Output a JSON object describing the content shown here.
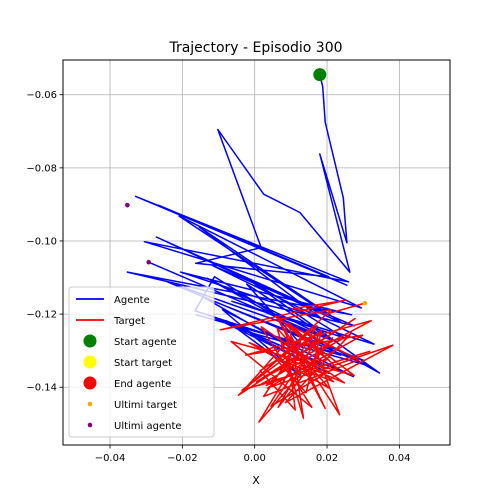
{
  "chart_data": {
    "type": "line",
    "title": "Trajectory - Episodio 300",
    "xlabel": "X",
    "ylabel": "",
    "xlim": [
      -0.053,
      0.054
    ],
    "ylim": [
      -0.1558,
      -0.0505
    ],
    "xticks": [
      -0.04,
      -0.02,
      0.0,
      0.02,
      0.04
    ],
    "xtick_labels": [
      "−0.04",
      "−0.02",
      "0.00",
      "0.02",
      "0.04"
    ],
    "yticks": [
      -0.14,
      -0.12,
      -0.1,
      -0.08,
      -0.06
    ],
    "ytick_labels": [
      "−0.14",
      "−0.12",
      "−0.10",
      "−0.08",
      "−0.06"
    ],
    "grid": true,
    "legend_position": "lower-left",
    "series": [
      {
        "name": "Agente",
        "kind": "line",
        "color": "#0000ff",
        "x": [
          0.018,
          0.0188,
          0.0195,
          0.0245,
          0.0255,
          0.018,
          0.0263,
          0.0125,
          0.0025,
          -0.0102,
          0.0018,
          -0.0163,
          0.0205,
          -0.0266,
          0.0255,
          -0.0329,
          0.026,
          -0.0305,
          0.0295,
          -0.0209,
          0.0195,
          -0.0272,
          0.0242,
          -0.0153,
          0.0185,
          -0.0205,
          0.0268,
          -0.0352,
          0.0275,
          -0.0115,
          0.033,
          -0.0063,
          0.0248,
          -0.0019,
          0.0345,
          -0.0131,
          0.0212,
          -0.0022,
          0.0132,
          -0.0165,
          -0.0111,
          0.0238,
          -0.0162,
          0.0302,
          -0.0139,
          0.0182,
          -0.0079,
          0.0205,
          -0.0128,
          0.0273,
          -0.0089,
          0.0126,
          -0.0047,
          0.0318,
          -0.0243,
          0.0225,
          -0.0052,
          0.0188,
          -0.0293
        ],
        "y": [
          -0.0545,
          -0.0578,
          -0.0675,
          -0.0882,
          -0.1005,
          -0.0762,
          -0.1085,
          -0.0922,
          -0.0872,
          -0.0695,
          -0.1018,
          -0.1061,
          -0.1098,
          -0.0902,
          -0.1121,
          -0.0878,
          -0.1112,
          -0.1002,
          -0.1183,
          -0.0932,
          -0.1197,
          -0.0989,
          -0.1225,
          -0.0962,
          -0.1212,
          -0.1085,
          -0.1202,
          -0.1085,
          -0.1232,
          -0.1068,
          -0.1282,
          -0.1165,
          -0.1265,
          -0.1104,
          -0.1361,
          -0.1102,
          -0.1271,
          -0.1118,
          -0.1287,
          -0.1191,
          -0.1098,
          -0.1312,
          -0.1202,
          -0.1327,
          -0.1155,
          -0.1338,
          -0.1218,
          -0.1362,
          -0.1202,
          -0.1371,
          -0.1188,
          -0.1368,
          -0.1241,
          -0.1342,
          -0.1111,
          -0.1275,
          -0.1178,
          -0.1262,
          -0.1058
        ]
      },
      {
        "name": "Target",
        "kind": "line",
        "color": "#ff0000",
        "x": [
          0.0305,
          0.0198,
          0.0105,
          0.0252,
          -0.0095,
          0.0212,
          -0.0045,
          0.0278,
          0.0005,
          0.0322,
          -0.0025,
          0.0298,
          0.0035,
          0.0382,
          0.0085,
          0.0265,
          0.0012,
          0.0318,
          -0.0035,
          0.0182,
          0.0065,
          0.0215,
          0.0012,
          0.0172,
          -0.0025,
          0.0102,
          0.0195,
          0.0065,
          0.0288,
          0.0025,
          0.0148,
          0.0235,
          0.0058,
          0.0275,
          -0.0065,
          0.0158,
          0.0018,
          0.0248,
          -0.0015,
          0.0205,
          0.0062,
          0.0135,
          0.0095,
          0.0225,
          0.0045,
          0.0175,
          0.0032,
          0.0198,
          0.0085,
          0.0112,
          0.0015,
          0.0185,
          0.0142,
          0.0055,
          0.0218,
          0.0105
        ],
        "y": [
          -0.117,
          -0.12,
          -0.1185,
          -0.1162,
          -0.1243,
          -0.1188,
          -0.1422,
          -0.1212,
          -0.1385,
          -0.1218,
          -0.1312,
          -0.1258,
          -0.1402,
          -0.1285,
          -0.1442,
          -0.1255,
          -0.1395,
          -0.1302,
          -0.1408,
          -0.1248,
          -0.1455,
          -0.1265,
          -0.1495,
          -0.1232,
          -0.1402,
          -0.1262,
          -0.1458,
          -0.1215,
          -0.1325,
          -0.1425,
          -0.1242,
          -0.1475,
          -0.1205,
          -0.1368,
          -0.1275,
          -0.1455,
          -0.1235,
          -0.1388,
          -0.1278,
          -0.1402,
          -0.1238,
          -0.1485,
          -0.1225,
          -0.1345,
          -0.1452,
          -0.1268,
          -0.1395,
          -0.1322,
          -0.1228,
          -0.1462,
          -0.1355,
          -0.1245,
          -0.1415,
          -0.1318,
          -0.1385,
          -0.1295
        ]
      },
      {
        "name": "Start agente",
        "kind": "marker",
        "color": "#008000",
        "points": [
          [
            0.018,
            -0.0545
          ]
        ]
      },
      {
        "name": "Start target",
        "kind": "marker",
        "color": "#ffff00",
        "points": []
      },
      {
        "name": "End agente",
        "kind": "marker",
        "color": "#ff0000",
        "points": []
      },
      {
        "name": "Ultimi target",
        "kind": "dots",
        "color": "#ffa500",
        "points": [
          [
            0.0305,
            -0.117
          ]
        ]
      },
      {
        "name": "Ultimi agente",
        "kind": "dots",
        "color": "#800080",
        "points": [
          [
            -0.0352,
            -0.0902
          ],
          [
            -0.0293,
            -0.1058
          ]
        ]
      }
    ]
  }
}
